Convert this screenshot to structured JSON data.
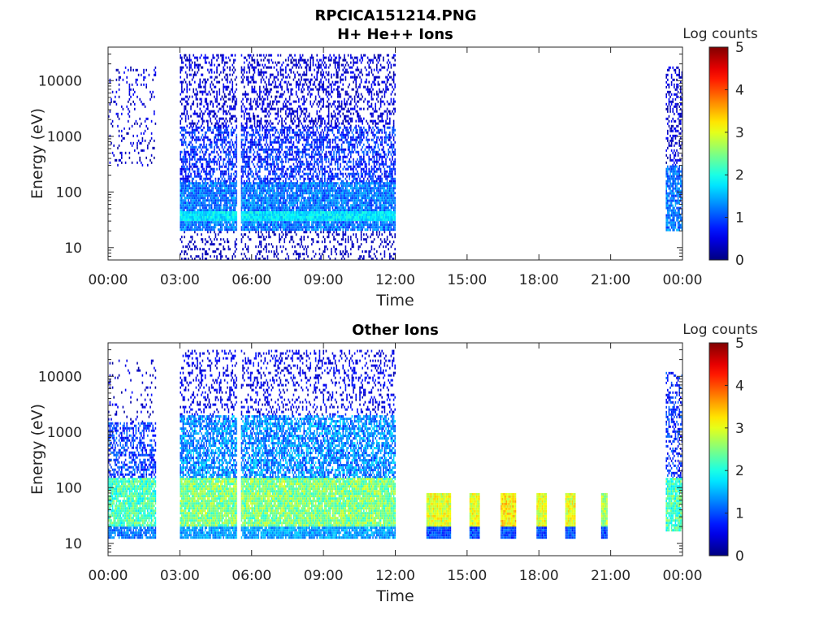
{
  "figure": {
    "title": "RPCICA151214.PNG"
  },
  "chart_data": [
    {
      "type": "heatmap",
      "title": "H+ He++ Ions",
      "xlabel": "Time",
      "ylabel": "Energy (eV)",
      "xticks": [
        "00:00",
        "03:00",
        "06:00",
        "09:00",
        "12:00",
        "15:00",
        "18:00",
        "21:00",
        "00:00"
      ],
      "xlim_hours": [
        0,
        24
      ],
      "yticks": [
        "10",
        "100",
        "1000",
        "10000"
      ],
      "ylim": [
        6,
        40000
      ],
      "yscale": "log",
      "colorbar": {
        "label": "Log counts",
        "ticks": [
          "0",
          "1",
          "2",
          "3",
          "4",
          "5"
        ],
        "range": [
          0,
          5
        ]
      },
      "blocks": [
        {
          "t0": 0.0,
          "t1": 2.0,
          "e0": 300,
          "e1": 18000,
          "level": 0.4,
          "density": 0.12,
          "jitter": 0.3
        },
        {
          "t0": 3.0,
          "t1": 12.0,
          "e0": 1500,
          "e1": 30000,
          "level": 0.4,
          "density": 0.35,
          "jitter": 0.3
        },
        {
          "t0": 3.0,
          "t1": 12.0,
          "e0": 150,
          "e1": 1500,
          "level": 0.8,
          "density": 0.55,
          "jitter": 0.4
        },
        {
          "t0": 3.0,
          "t1": 12.0,
          "e0": 20,
          "e1": 150,
          "level": 1.2,
          "density": 0.9,
          "jitter": 0.4
        },
        {
          "t0": 3.0,
          "t1": 12.0,
          "e0": 32,
          "e1": 45,
          "level": 1.8,
          "density": 1.0,
          "jitter": 0.3
        },
        {
          "t0": 3.0,
          "t1": 12.0,
          "e0": 6,
          "e1": 20,
          "level": 0.3,
          "density": 0.25,
          "jitter": 0.1
        },
        {
          "t0": 23.3,
          "t1": 24.0,
          "e0": 300,
          "e1": 18000,
          "level": 0.4,
          "density": 0.35,
          "jitter": 0.3
        },
        {
          "t0": 23.3,
          "t1": 24.0,
          "e0": 20,
          "e1": 300,
          "level": 1.2,
          "density": 0.8,
          "jitter": 0.4
        }
      ],
      "gaps": [
        {
          "t0": 5.35,
          "t1": 5.55
        }
      ]
    },
    {
      "type": "heatmap",
      "title": "Other Ions",
      "xlabel": "Time",
      "ylabel": "Energy (eV)",
      "xticks": [
        "00:00",
        "03:00",
        "06:00",
        "09:00",
        "12:00",
        "15:00",
        "18:00",
        "21:00",
        "00:00"
      ],
      "xlim_hours": [
        0,
        24
      ],
      "yticks": [
        "10",
        "100",
        "1000",
        "10000"
      ],
      "ylim": [
        6,
        40000
      ],
      "yscale": "log",
      "colorbar": {
        "label": "Log counts",
        "ticks": [
          "0",
          "1",
          "2",
          "3",
          "4",
          "5"
        ],
        "range": [
          0,
          5
        ]
      },
      "blocks": [
        {
          "t0": 0.0,
          "t1": 2.0,
          "e0": 1500,
          "e1": 20000,
          "level": 0.4,
          "density": 0.1,
          "jitter": 0.3
        },
        {
          "t0": 0.0,
          "t1": 2.0,
          "e0": 150,
          "e1": 1500,
          "level": 0.9,
          "density": 0.5,
          "jitter": 0.4
        },
        {
          "t0": 0.0,
          "t1": 2.0,
          "e0": 20,
          "e1": 150,
          "level": 2.2,
          "density": 0.9,
          "jitter": 0.5
        },
        {
          "t0": 0.0,
          "t1": 2.0,
          "e0": 13,
          "e1": 20,
          "level": 1.2,
          "density": 0.8,
          "jitter": 0.3
        },
        {
          "t0": 3.0,
          "t1": 12.0,
          "e0": 2000,
          "e1": 30000,
          "level": 0.5,
          "density": 0.25,
          "jitter": 0.3
        },
        {
          "t0": 3.0,
          "t1": 12.0,
          "e0": 150,
          "e1": 2000,
          "level": 1.3,
          "density": 0.7,
          "jitter": 0.5
        },
        {
          "t0": 3.0,
          "t1": 12.0,
          "e0": 20,
          "e1": 150,
          "level": 2.5,
          "density": 0.95,
          "jitter": 0.5
        },
        {
          "t0": 3.0,
          "t1": 12.0,
          "e0": 13,
          "e1": 20,
          "level": 1.4,
          "density": 0.9,
          "jitter": 0.3
        },
        {
          "t0": 13.3,
          "t1": 14.3,
          "e0": 20,
          "e1": 80,
          "level": 3.0,
          "density": 1.0,
          "jitter": 0.4
        },
        {
          "t0": 13.3,
          "t1": 14.3,
          "e0": 13,
          "e1": 20,
          "level": 1.0,
          "density": 1.0,
          "jitter": 0.3
        },
        {
          "t0": 15.1,
          "t1": 15.5,
          "e0": 20,
          "e1": 80,
          "level": 3.0,
          "density": 1.0,
          "jitter": 0.4
        },
        {
          "t0": 15.1,
          "t1": 15.5,
          "e0": 13,
          "e1": 20,
          "level": 1.0,
          "density": 1.0,
          "jitter": 0.3
        },
        {
          "t0": 16.4,
          "t1": 17.0,
          "e0": 20,
          "e1": 80,
          "level": 3.2,
          "density": 1.0,
          "jitter": 0.4
        },
        {
          "t0": 16.4,
          "t1": 17.0,
          "e0": 13,
          "e1": 20,
          "level": 1.0,
          "density": 1.0,
          "jitter": 0.3
        },
        {
          "t0": 17.9,
          "t1": 18.3,
          "e0": 20,
          "e1": 80,
          "level": 3.0,
          "density": 1.0,
          "jitter": 0.4
        },
        {
          "t0": 17.9,
          "t1": 18.3,
          "e0": 13,
          "e1": 20,
          "level": 1.0,
          "density": 1.0,
          "jitter": 0.3
        },
        {
          "t0": 19.1,
          "t1": 19.5,
          "e0": 20,
          "e1": 80,
          "level": 3.0,
          "density": 1.0,
          "jitter": 0.4
        },
        {
          "t0": 19.1,
          "t1": 19.5,
          "e0": 13,
          "e1": 20,
          "level": 1.0,
          "density": 1.0,
          "jitter": 0.3
        },
        {
          "t0": 20.6,
          "t1": 20.85,
          "e0": 20,
          "e1": 80,
          "level": 2.7,
          "density": 1.0,
          "jitter": 0.4
        },
        {
          "t0": 20.6,
          "t1": 20.85,
          "e0": 13,
          "e1": 20,
          "level": 1.0,
          "density": 1.0,
          "jitter": 0.3
        },
        {
          "t0": 23.3,
          "t1": 24.0,
          "e0": 150,
          "e1": 12000,
          "level": 0.8,
          "density": 0.4,
          "jitter": 0.4
        },
        {
          "t0": 23.3,
          "t1": 24.0,
          "e0": 18,
          "e1": 150,
          "level": 2.2,
          "density": 0.9,
          "jitter": 0.5
        }
      ],
      "gaps": [
        {
          "t0": 5.35,
          "t1": 5.55
        }
      ]
    }
  ]
}
